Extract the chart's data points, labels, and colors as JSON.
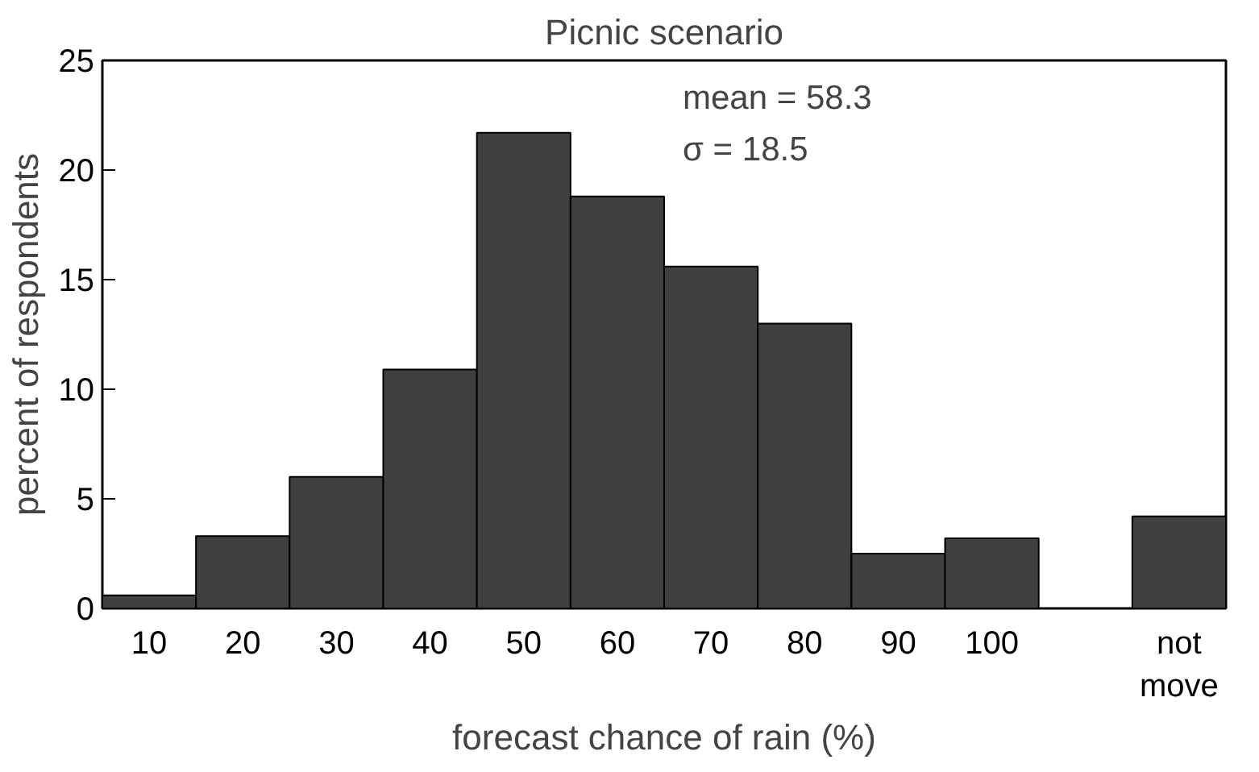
{
  "chart_data": {
    "type": "bar",
    "title": "Picnic scenario",
    "xlabel": "forecast chance of rain (%)",
    "ylabel": "percent of respondents",
    "categories": [
      "10",
      "20",
      "30",
      "40",
      "50",
      "60",
      "70",
      "80",
      "90",
      "100",
      null,
      "not move"
    ],
    "values": [
      0.6,
      3.3,
      6.0,
      10.9,
      21.7,
      18.8,
      15.6,
      13.0,
      2.5,
      3.2,
      null,
      4.2
    ],
    "color": "#404040",
    "ylim": [
      0,
      25
    ],
    "yticks": [
      0,
      5,
      10,
      15,
      20,
      25
    ],
    "grid": false,
    "annotations": [
      "mean = 58.3",
      "σ = 18.5"
    ]
  }
}
